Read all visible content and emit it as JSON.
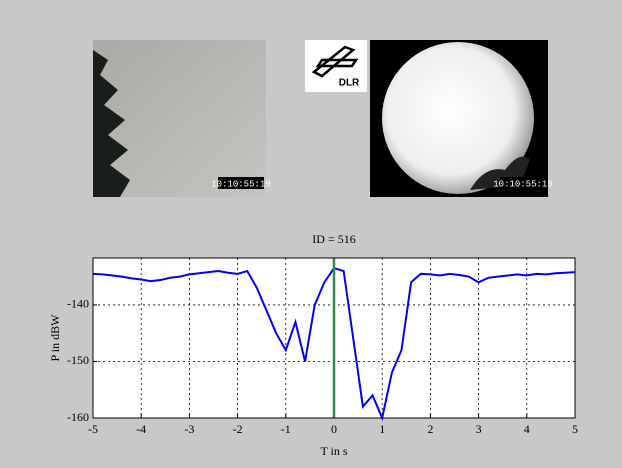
{
  "images": [
    {
      "timestamp": "10:10:55:19"
    },
    {
      "timestamp": "10:10:55:19"
    }
  ],
  "logo": "DLR",
  "chart_data": {
    "type": "line",
    "title": "ID = 516",
    "x_label": "T in s",
    "y_label": "P in dBW",
    "x": [
      -5,
      -4.8,
      -4.6,
      -4.4,
      -4.2,
      -4,
      -3.8,
      -3.6,
      -3.4,
      -3.2,
      -3,
      -2.8,
      -2.6,
      -2.4,
      -2.2,
      -2,
      -1.8,
      -1.6,
      -1.4,
      -1.2,
      -1,
      -0.8,
      -0.6,
      -0.4,
      -0.2,
      0,
      0.2,
      0.4,
      0.6,
      0.8,
      1,
      1.2,
      1.4,
      1.6,
      1.8,
      2,
      2.2,
      2.4,
      2.6,
      2.8,
      3,
      3.2,
      3.4,
      3.6,
      3.8,
      4,
      4.2,
      4.4,
      4.6,
      4.8,
      5
    ],
    "series": [
      {
        "color": "#0000ff",
        "values": [
          -134.5,
          -134.6,
          -134.8,
          -135,
          -135.3,
          -135.5,
          -135.8,
          -135.6,
          -135.2,
          -135,
          -134.6,
          -134.4,
          -134.2,
          -134,
          -134.3,
          -134.5,
          -134,
          -137,
          -141,
          -145,
          -148,
          -143,
          -150,
          -140,
          -136,
          -133.5,
          -134,
          -146,
          -158,
          -156,
          -160,
          -152,
          -148,
          -136,
          -134.5,
          -134.6,
          -134.8,
          -134.5,
          -134.7,
          -135,
          -136,
          -135.2,
          -135,
          -134.8,
          -134.6,
          -134.8,
          -134.5,
          -134.6,
          -134.4,
          -134.3,
          -134.2
        ]
      }
    ],
    "cursor_x": 0,
    "cursor_color": "#2e8b57",
    "xlim": [
      -5,
      5
    ],
    "ylim": [
      -160,
      -131.7
    ],
    "xticks": [
      -5,
      -4,
      -3,
      -2,
      -1,
      0,
      1,
      2,
      3,
      4,
      5
    ],
    "yticks": [
      -160,
      -150,
      -140
    ],
    "grid": true
  }
}
